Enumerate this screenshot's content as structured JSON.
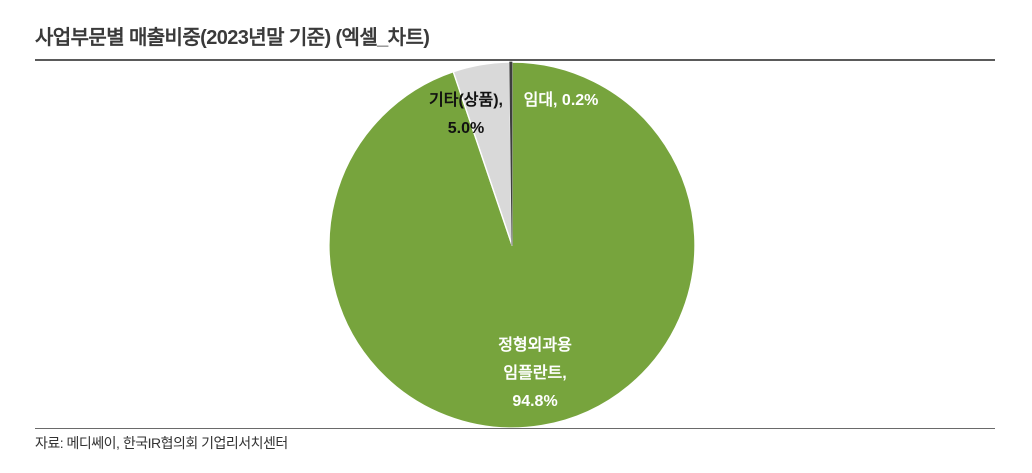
{
  "chart_data": {
    "type": "pie",
    "title": "사업부문별 매출비중(2023년말 기준) (엑셀_차트)",
    "categories": [
      "정형외과용 임플란트",
      "기타(상품)",
      "임대"
    ],
    "values": [
      94.8,
      5.0,
      0.2
    ],
    "unit": "%",
    "colors": [
      "#77a43d",
      "#d9d9d9",
      "#3f3f3f"
    ],
    "start_angle": "12 o'clock, clockwise",
    "legend": false
  },
  "source": "자료: 메디쎄이, 한국IR협의회 기업리서치센터"
}
